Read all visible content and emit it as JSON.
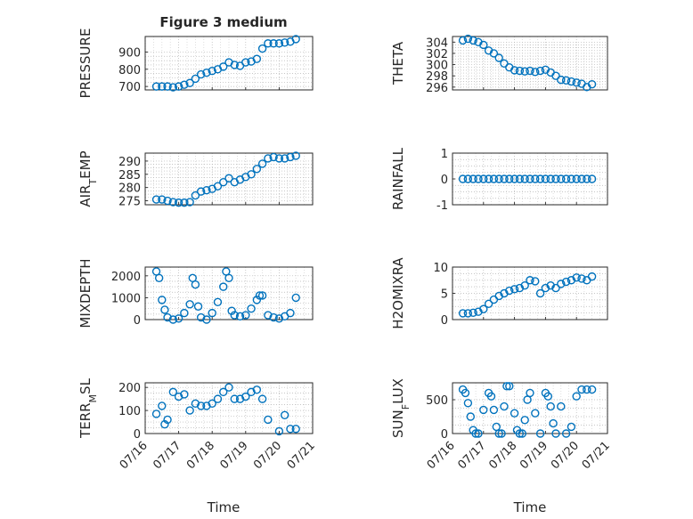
{
  "figure": {
    "title": "Figure 3 medium"
  },
  "colors": {
    "marker": "#0072bd",
    "axis": "#262626",
    "grid": "#b4b4b4",
    "background": "#ffffff"
  },
  "x_axis": {
    "label": "Time",
    "ticks": [
      "07/16",
      "07/17",
      "07/18",
      "07/19",
      "07/20",
      "07/21"
    ],
    "xlim": [
      "07/16",
      "07/21"
    ]
  },
  "chart_data": [
    {
      "type": "scatter",
      "ylabel": "PRESSURE",
      "ylim": [
        680,
        990
      ],
      "yticks": [
        700,
        800,
        900
      ],
      "grid": true,
      "x": [
        "07/16 08:00",
        "07/16 12:00",
        "07/16 16:00",
        "07/16 20:00",
        "07/17 00:00",
        "07/17 04:00",
        "07/17 08:00",
        "07/17 12:00",
        "07/17 16:00",
        "07/17 20:00",
        "07/18 00:00",
        "07/18 04:00",
        "07/18 08:00",
        "07/18 12:00",
        "07/18 16:00",
        "07/18 20:00",
        "07/19 00:00",
        "07/19 04:00",
        "07/19 08:00",
        "07/19 12:00",
        "07/19 16:00",
        "07/19 20:00",
        "07/20 00:00",
        "07/20 04:00",
        "07/20 08:00",
        "07/20 12:00"
      ],
      "y": [
        700,
        700,
        700,
        695,
        700,
        710,
        720,
        745,
        770,
        780,
        790,
        800,
        815,
        840,
        825,
        820,
        840,
        845,
        860,
        920,
        950,
        950,
        950,
        955,
        960,
        975
      ]
    },
    {
      "type": "scatter",
      "ylabel": "THETA",
      "ylim": [
        295.5,
        305
      ],
      "yticks": [
        296,
        298,
        300,
        302,
        304
      ],
      "grid": true,
      "x": [
        "07/16 08:00",
        "07/16 12:00",
        "07/16 16:00",
        "07/16 20:00",
        "07/17 00:00",
        "07/17 04:00",
        "07/17 08:00",
        "07/17 12:00",
        "07/17 16:00",
        "07/17 20:00",
        "07/18 00:00",
        "07/18 04:00",
        "07/18 08:00",
        "07/18 12:00",
        "07/18 16:00",
        "07/18 20:00",
        "07/19 00:00",
        "07/19 04:00",
        "07/19 08:00",
        "07/19 12:00",
        "07/19 16:00",
        "07/19 20:00",
        "07/20 00:00",
        "07/20 04:00",
        "07/20 08:00",
        "07/20 12:00"
      ],
      "y": [
        304.3,
        304.6,
        304.3,
        304.0,
        303.5,
        302.5,
        302.0,
        301.2,
        300.2,
        299.5,
        299.0,
        298.9,
        298.8,
        298.9,
        298.7,
        298.9,
        299.1,
        298.6,
        298.0,
        297.3,
        297.2,
        297.0,
        296.8,
        296.6,
        296.0,
        296.5
      ]
    },
    {
      "type": "scatter",
      "ylabel": "AIR_TEMP",
      "ylim": [
        273.5,
        293
      ],
      "yticks": [
        275,
        280,
        285,
        290
      ],
      "grid": true,
      "x": [
        "07/16 08:00",
        "07/16 12:00",
        "07/16 16:00",
        "07/16 20:00",
        "07/17 00:00",
        "07/17 04:00",
        "07/17 08:00",
        "07/17 12:00",
        "07/17 16:00",
        "07/17 20:00",
        "07/18 00:00",
        "07/18 04:00",
        "07/18 08:00",
        "07/18 12:00",
        "07/18 16:00",
        "07/18 20:00",
        "07/19 00:00",
        "07/19 04:00",
        "07/19 08:00",
        "07/19 12:00",
        "07/19 16:00",
        "07/19 20:00",
        "07/20 00:00",
        "07/20 04:00",
        "07/20 08:00",
        "07/20 12:00"
      ],
      "y": [
        275.5,
        275.5,
        275.0,
        274.5,
        274.3,
        274.3,
        274.5,
        277.0,
        278.5,
        279.0,
        279.5,
        280.5,
        282.0,
        283.5,
        282.0,
        283.0,
        284.0,
        285.0,
        287.0,
        289.0,
        291.0,
        291.5,
        291.0,
        291.0,
        291.5,
        292.0
      ]
    },
    {
      "type": "scatter",
      "ylabel": "RAINFALL",
      "ylim": [
        -1,
        1
      ],
      "yticks": [
        -1,
        0,
        1
      ],
      "grid": true,
      "x": [
        "07/16 08:00",
        "07/16 12:00",
        "07/16 16:00",
        "07/16 20:00",
        "07/17 00:00",
        "07/17 04:00",
        "07/17 08:00",
        "07/17 12:00",
        "07/17 16:00",
        "07/17 20:00",
        "07/18 00:00",
        "07/18 04:00",
        "07/18 08:00",
        "07/18 12:00",
        "07/18 16:00",
        "07/18 20:00",
        "07/19 00:00",
        "07/19 04:00",
        "07/19 08:00",
        "07/19 12:00",
        "07/19 16:00",
        "07/19 20:00",
        "07/20 00:00",
        "07/20 04:00",
        "07/20 08:00",
        "07/20 12:00"
      ],
      "y": [
        0,
        0,
        0,
        0,
        0,
        0,
        0,
        0,
        0,
        0,
        0,
        0,
        0,
        0,
        0,
        0,
        0,
        0,
        0,
        0,
        0,
        0,
        0,
        0,
        0,
        0
      ]
    },
    {
      "type": "scatter",
      "ylabel": "MIXDEPTH",
      "ylim": [
        0,
        2400
      ],
      "yticks": [
        0,
        1000,
        2000
      ],
      "grid": true,
      "x": [
        "07/16 08:00",
        "07/16 10:00",
        "07/16 12:00",
        "07/16 14:00",
        "07/16 16:00",
        "07/16 20:00",
        "07/17 00:00",
        "07/17 04:00",
        "07/17 08:00",
        "07/17 10:00",
        "07/17 12:00",
        "07/17 14:00",
        "07/17 16:00",
        "07/17 20:00",
        "07/18 00:00",
        "07/18 04:00",
        "07/18 08:00",
        "07/18 10:00",
        "07/18 12:00",
        "07/18 14:00",
        "07/18 16:00",
        "07/18 20:00",
        "07/19 00:00",
        "07/19 04:00",
        "07/19 08:00",
        "07/19 10:00",
        "07/19 12:00",
        "07/19 16:00",
        "07/19 20:00",
        "07/20 00:00",
        "07/20 04:00",
        "07/20 08:00",
        "07/20 12:00"
      ],
      "y": [
        2200,
        1900,
        900,
        450,
        100,
        0,
        50,
        300,
        700,
        1900,
        1600,
        600,
        100,
        0,
        300,
        800,
        1500,
        2200,
        1900,
        400,
        200,
        150,
        200,
        500,
        900,
        1100,
        1100,
        200,
        100,
        50,
        150,
        300,
        1000
      ]
    },
    {
      "type": "scatter",
      "ylabel": "H2OMIXRA",
      "ylim": [
        0,
        10
      ],
      "yticks": [
        0,
        5,
        10
      ],
      "grid": true,
      "x": [
        "07/16 08:00",
        "07/16 12:00",
        "07/16 16:00",
        "07/16 20:00",
        "07/17 00:00",
        "07/17 04:00",
        "07/17 08:00",
        "07/17 12:00",
        "07/17 16:00",
        "07/17 20:00",
        "07/18 00:00",
        "07/18 04:00",
        "07/18 08:00",
        "07/18 12:00",
        "07/18 16:00",
        "07/18 20:00",
        "07/19 00:00",
        "07/19 04:00",
        "07/19 08:00",
        "07/19 12:00",
        "07/19 16:00",
        "07/19 20:00",
        "07/20 00:00",
        "07/20 04:00",
        "07/20 08:00",
        "07/20 12:00"
      ],
      "y": [
        1.2,
        1.2,
        1.3,
        1.5,
        2.0,
        3.0,
        3.8,
        4.5,
        5.0,
        5.5,
        5.8,
        6.0,
        6.5,
        7.5,
        7.3,
        5.0,
        6.0,
        6.5,
        6.0,
        6.8,
        7.2,
        7.5,
        8.0,
        7.8,
        7.5,
        8.2
      ]
    },
    {
      "type": "scatter",
      "ylabel": "TERR_MSL",
      "ylim": [
        0,
        220
      ],
      "yticks": [
        0,
        100,
        200
      ],
      "grid": true,
      "x": [
        "07/16 08:00",
        "07/16 12:00",
        "07/16 14:00",
        "07/16 16:00",
        "07/16 20:00",
        "07/17 00:00",
        "07/17 04:00",
        "07/17 08:00",
        "07/17 12:00",
        "07/17 16:00",
        "07/17 20:00",
        "07/18 00:00",
        "07/18 04:00",
        "07/18 08:00",
        "07/18 12:00",
        "07/18 16:00",
        "07/18 20:00",
        "07/19 00:00",
        "07/19 04:00",
        "07/19 08:00",
        "07/19 12:00",
        "07/19 16:00",
        "07/20 00:00",
        "07/20 04:00",
        "07/20 08:00",
        "07/20 12:00"
      ],
      "y": [
        85,
        120,
        40,
        60,
        180,
        160,
        170,
        100,
        130,
        120,
        120,
        130,
        150,
        180,
        200,
        150,
        150,
        160,
        180,
        190,
        150,
        60,
        10,
        80,
        20,
        20
      ]
    },
    {
      "type": "scatter",
      "ylabel": "SUN_FLUX",
      "ylim": [
        0,
        750
      ],
      "yticks": [
        0,
        500
      ],
      "grid": true,
      "x": [
        "07/16 08:00",
        "07/16 10:00",
        "07/16 12:00",
        "07/16 14:00",
        "07/16 16:00",
        "07/16 18:00",
        "07/16 20:00",
        "07/17 00:00",
        "07/17 04:00",
        "07/17 06:00",
        "07/17 08:00",
        "07/17 10:00",
        "07/17 12:00",
        "07/17 14:00",
        "07/17 16:00",
        "07/17 18:00",
        "07/17 20:00",
        "07/18 00:00",
        "07/18 02:00",
        "07/18 04:00",
        "07/18 06:00",
        "07/18 08:00",
        "07/18 10:00",
        "07/18 12:00",
        "07/18 16:00",
        "07/18 20:00",
        "07/19 00:00",
        "07/19 02:00",
        "07/19 04:00",
        "07/19 06:00",
        "07/19 08:00",
        "07/19 12:00",
        "07/19 16:00",
        "07/19 20:00",
        "07/20 00:00",
        "07/20 04:00",
        "07/20 08:00",
        "07/20 12:00"
      ],
      "y": [
        650,
        600,
        450,
        250,
        50,
        0,
        0,
        350,
        600,
        550,
        350,
        100,
        0,
        0,
        400,
        700,
        700,
        300,
        50,
        0,
        0,
        200,
        500,
        600,
        300,
        0,
        600,
        550,
        400,
        150,
        0,
        400,
        0,
        100,
        550,
        650,
        650,
        650
      ]
    }
  ]
}
